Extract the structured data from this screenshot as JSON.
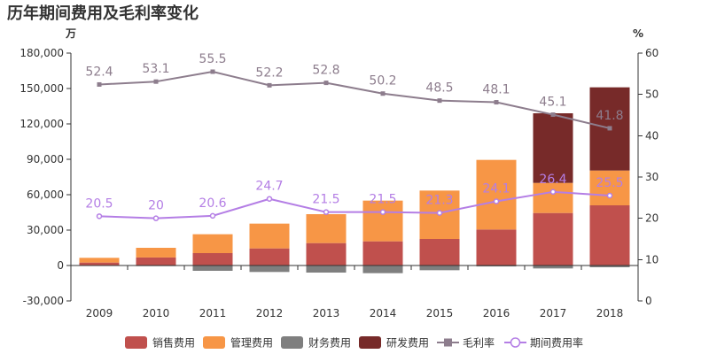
{
  "chart_data": {
    "type": "bar",
    "title": "历年期间费用及毛利率变化",
    "stacked": true,
    "categories": [
      "2009",
      "2010",
      "2011",
      "2012",
      "2013",
      "2014",
      "2015",
      "2016",
      "2017",
      "2018"
    ],
    "series": [
      {
        "name": "销售费用",
        "type": "bar",
        "axis": "left",
        "color": "#c0504d",
        "values": [
          2500,
          6800,
          10500,
          14500,
          19000,
          20500,
          22500,
          30500,
          44500,
          51000
        ]
      },
      {
        "name": "管理费用",
        "type": "bar",
        "axis": "left",
        "color": "#f79646",
        "values": [
          4000,
          8200,
          16000,
          21000,
          24500,
          34500,
          41000,
          59000,
          25500,
          29500
        ]
      },
      {
        "name": "财务费用",
        "type": "bar",
        "axis": "left",
        "color": "#7f7f7f",
        "values": [
          -300,
          -500,
          -4500,
          -5500,
          -6000,
          -6500,
          -4000,
          -800,
          -2500,
          -1500
        ]
      },
      {
        "name": "研发费用",
        "type": "bar",
        "axis": "left",
        "color": "#772a29",
        "values": [
          0,
          0,
          0,
          0,
          0,
          0,
          0,
          0,
          59000,
          70500
        ]
      },
      {
        "name": "毛利率",
        "type": "line",
        "axis": "right",
        "color": "#8d7d8d",
        "marker": "square",
        "values": [
          52.4,
          53.1,
          55.5,
          52.2,
          52.8,
          50.2,
          48.5,
          48.1,
          45.1,
          41.8
        ]
      },
      {
        "name": "期间费用率",
        "type": "line",
        "axis": "right",
        "color": "#b47ee5",
        "marker": "circle",
        "values": [
          20.5,
          20,
          20.6,
          24.7,
          21.5,
          21.5,
          21.3,
          24.1,
          26.4,
          25.5
        ]
      }
    ],
    "y_left": {
      "unit": "万",
      "range": [
        -30000,
        180000
      ],
      "ticks": [
        "180,000",
        "150,000",
        "120,000",
        "90,000",
        "60,000",
        "30,000",
        "0",
        "-30,000"
      ]
    },
    "y_right": {
      "unit": "%",
      "range": [
        0,
        60
      ],
      "ticks": [
        "60",
        "50",
        "40",
        "30",
        "20",
        "10",
        "0"
      ]
    },
    "grid": false,
    "legend": "bottom"
  }
}
